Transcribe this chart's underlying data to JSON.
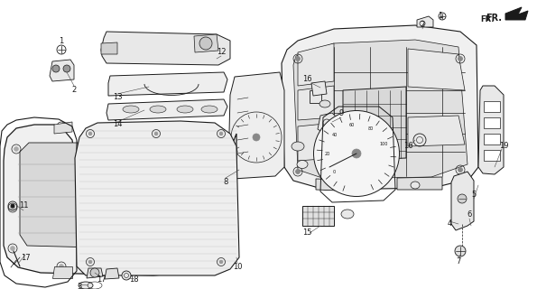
{
  "bg_color": "#ffffff",
  "line_color": "#1a1a1a",
  "fig_width": 5.95,
  "fig_height": 3.2,
  "dpi": 100
}
